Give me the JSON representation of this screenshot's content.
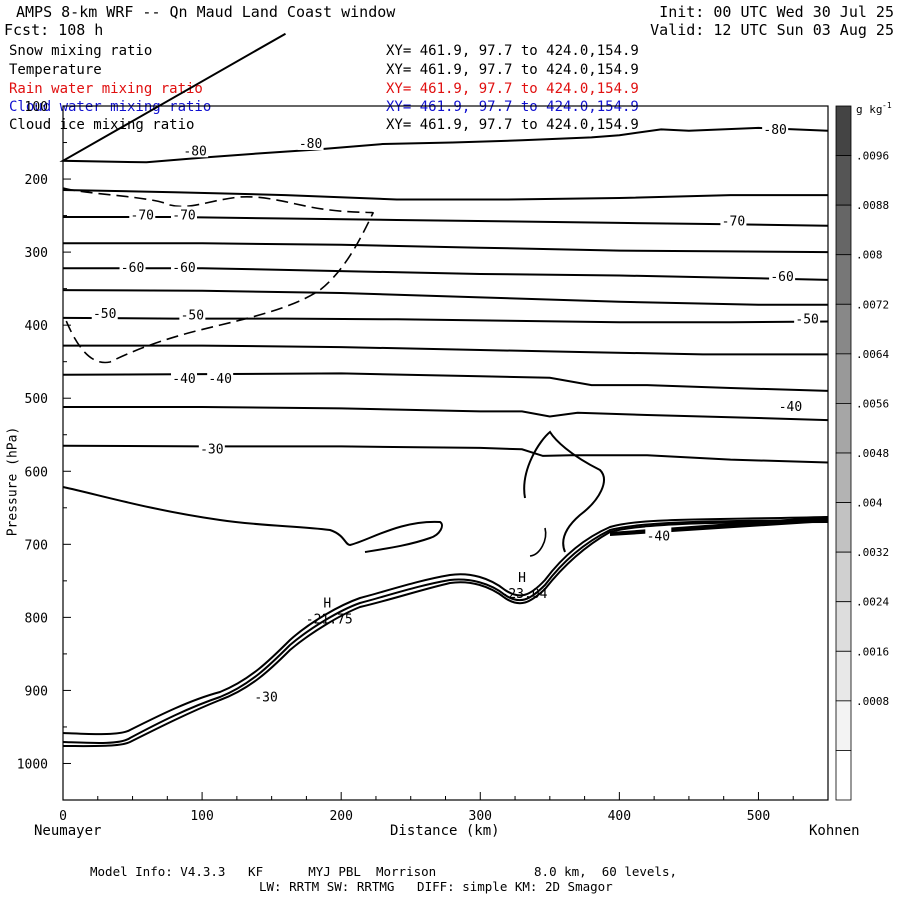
{
  "header": {
    "title": "AMPS 8-km WRF -- Qn Maud Land Coast window",
    "forecast": "Fcst: 108 h",
    "init": "Init: 00 UTC Wed 30 Jul 25",
    "valid": "Valid: 12 UTC Sun 03 Aug 25"
  },
  "legend": [
    {
      "label": "Snow mixing ratio",
      "xy": "XY= 461.9, 97.7 to 424.0,154.9",
      "color": "#000000"
    },
    {
      "label": "Temperature",
      "xy": "XY= 461.9, 97.7 to 424.0,154.9",
      "color": "#000000"
    },
    {
      "label": "Rain water mixing ratio",
      "xy": "XY= 461.9, 97.7 to 424.0,154.9",
      "color": "#e01010"
    },
    {
      "label": "Cloud water mixing ratio",
      "xy": "XY= 461.9, 97.7 to 424.0,154.9",
      "color": "#1010d0"
    },
    {
      "label": "Cloud ice mixing ratio",
      "xy": "XY= 461.9, 97.7 to 424.0,154.9",
      "color": "#000000"
    }
  ],
  "footer": {
    "line1": "Model Info: V4.3.3   KF      MYJ PBL  Morrison             8.0 km,  60 levels,",
    "line2": "LW: RRTM SW: RRTMG   DIFF: simple KM: 2D Smagor"
  },
  "chart_data": {
    "type": "contour",
    "xlabel": "Distance (km)",
    "ylabel": "Pressure (hPa)",
    "x_start_label": "Neumayer",
    "x_end_label": "Kohnen",
    "xlim": [
      0,
      550
    ],
    "ylim": [
      1050,
      100
    ],
    "x_ticks": [
      0,
      100,
      200,
      300,
      400,
      500
    ],
    "y_ticks": [
      100,
      200,
      300,
      400,
      500,
      600,
      700,
      800,
      900,
      1000
    ],
    "colorbar": {
      "unit": "g kg",
      "unit_exp": "-1",
      "levels": [
        ".0096",
        ".0088",
        ".008",
        ".0072",
        ".0064",
        ".0056",
        ".0048",
        ".004",
        ".0032",
        ".0024",
        ".0016",
        ".0008"
      ],
      "colors": [
        "#444444",
        "#555555",
        "#666666",
        "#777777",
        "#888888",
        "#999999",
        "#a6a6a6",
        "#b3b3b3",
        "#c2c2c2",
        "#d0d0d0",
        "#dddddd",
        "#e8e8e8",
        "#f3f3f3",
        "#ffffff"
      ]
    },
    "temperature_contours": [
      {
        "label": "-80",
        "points": [
          [
            160,
            1
          ],
          [
            0,
            175
          ],
          [
            60,
            177
          ],
          [
            105,
            170
          ],
          [
            140,
            165
          ],
          [
            180,
            160
          ],
          [
            230,
            152
          ],
          [
            280,
            150
          ],
          [
            330,
            147
          ],
          [
            380,
            143
          ],
          [
            400,
            140
          ],
          [
            430,
            132
          ],
          [
            450,
            134
          ],
          [
            500,
            130
          ],
          [
            550,
            134
          ]
        ]
      },
      {
        "points": [
          [
            0,
            215
          ],
          [
            80,
            218
          ],
          [
            160,
            222
          ],
          [
            240,
            228
          ],
          [
            320,
            228
          ],
          [
            400,
            226
          ],
          [
            480,
            222
          ],
          [
            550,
            222
          ]
        ]
      },
      {
        "label": "-70",
        "points": [
          [
            0,
            252
          ],
          [
            80,
            252
          ],
          [
            160,
            254
          ],
          [
            240,
            256
          ],
          [
            320,
            258
          ],
          [
            400,
            260
          ],
          [
            480,
            262
          ],
          [
            550,
            264
          ]
        ]
      },
      {
        "points": [
          [
            0,
            288
          ],
          [
            100,
            288
          ],
          [
            200,
            290
          ],
          [
            300,
            294
          ],
          [
            400,
            298
          ],
          [
            480,
            299
          ],
          [
            550,
            300
          ]
        ]
      },
      {
        "label": "-60",
        "points": [
          [
            0,
            322
          ],
          [
            100,
            322
          ],
          [
            200,
            326
          ],
          [
            300,
            330
          ],
          [
            400,
            332
          ],
          [
            480,
            335
          ],
          [
            550,
            338
          ]
        ]
      },
      {
        "points": [
          [
            0,
            352
          ],
          [
            100,
            353
          ],
          [
            200,
            356
          ],
          [
            300,
            362
          ],
          [
            400,
            368
          ],
          [
            500,
            372
          ],
          [
            550,
            372
          ]
        ]
      },
      {
        "label": "-50",
        "points": [
          [
            0,
            390
          ],
          [
            80,
            391
          ],
          [
            160,
            391
          ],
          [
            240,
            392
          ],
          [
            320,
            394
          ],
          [
            400,
            396
          ],
          [
            480,
            396
          ],
          [
            550,
            395
          ]
        ]
      },
      {
        "points": [
          [
            0,
            428
          ],
          [
            100,
            428
          ],
          [
            200,
            430
          ],
          [
            300,
            434
          ],
          [
            380,
            437
          ],
          [
            460,
            440
          ],
          [
            550,
            440
          ]
        ]
      },
      {
        "label": "-40",
        "points": [
          [
            0,
            468
          ],
          [
            100,
            467
          ],
          [
            200,
            466
          ],
          [
            300,
            470
          ],
          [
            350,
            472
          ],
          [
            380,
            482
          ],
          [
            420,
            482
          ],
          [
            480,
            486
          ],
          [
            550,
            490
          ]
        ]
      },
      {
        "points": [
          [
            0,
            512
          ],
          [
            100,
            512
          ],
          [
            200,
            514
          ],
          [
            300,
            518
          ],
          [
            330,
            518
          ],
          [
            350,
            525
          ],
          [
            370,
            520
          ],
          [
            420,
            523
          ],
          [
            480,
            526
          ],
          [
            550,
            530
          ]
        ]
      },
      {
        "label": "-30",
        "points": [
          [
            0,
            565
          ],
          [
            100,
            566
          ],
          [
            200,
            566
          ],
          [
            300,
            568
          ],
          [
            330,
            570
          ],
          [
            345,
            579
          ],
          [
            365,
            578
          ],
          [
            420,
            578
          ],
          [
            480,
            584
          ],
          [
            550,
            588
          ]
        ]
      }
    ],
    "contour_labels": [
      {
        "text": "-80",
        "x": 95,
        "p": 162
      },
      {
        "text": "-80",
        "x": 178,
        "p": 152
      },
      {
        "text": "-80",
        "x": 512,
        "p": 133
      },
      {
        "text": "-70",
        "x": 57,
        "p": 250
      },
      {
        "text": "-70",
        "x": 87,
        "p": 250
      },
      {
        "text": "-70",
        "x": 482,
        "p": 258
      },
      {
        "text": "-60",
        "x": 50,
        "p": 322
      },
      {
        "text": "-60",
        "x": 87,
        "p": 322
      },
      {
        "text": "-60",
        "x": 517,
        "p": 334
      },
      {
        "text": "-50",
        "x": 30,
        "p": 385
      },
      {
        "text": "-50",
        "x": 93,
        "p": 387
      },
      {
        "text": "-50",
        "x": 535,
        "p": 392
      },
      {
        "text": "-40",
        "x": 87,
        "p": 474
      },
      {
        "text": "-40",
        "x": 113,
        "p": 474
      },
      {
        "text": "-40",
        "x": 523,
        "p": 512
      },
      {
        "text": "-30",
        "x": 107,
        "p": 570
      },
      {
        "text": "-40",
        "x": 428,
        "p": 689
      },
      {
        "text": "-30",
        "x": 146,
        "p": 910
      }
    ],
    "extrema": [
      {
        "mark": "H",
        "value": "-21.75",
        "x": 190,
        "p": 800
      },
      {
        "mark": "H",
        "value": "-23.04",
        "x": 330,
        "p": 765
      }
    ]
  }
}
